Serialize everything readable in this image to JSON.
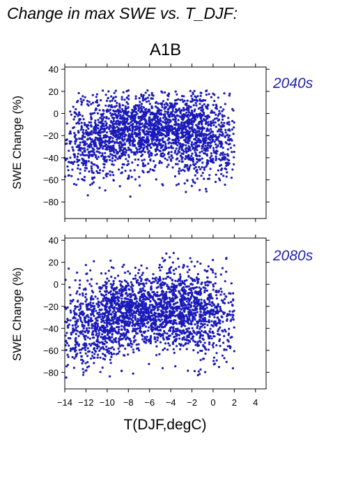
{
  "page_title": "Change in max SWE vs. T_DJF:",
  "scenario": "A1B",
  "colors": {
    "points": "#1a1ab8",
    "period_label": "#2222aa",
    "axis": "#000000"
  },
  "chart_data": [
    {
      "type": "scatter",
      "period": "2040s",
      "ylabel": "SWE Change (%)",
      "xlabel": "",
      "xlim": [
        -14,
        5
      ],
      "ylim": [
        -95,
        42
      ],
      "xticks": [
        -14,
        -12,
        -10,
        -8,
        -6,
        -4,
        -2,
        0,
        2,
        4
      ],
      "yticks": [
        40,
        20,
        0,
        -20,
        -40,
        -60,
        -80
      ],
      "xtick_labels": [],
      "ytick_labels": [
        "40",
        "20",
        "0",
        "−20",
        "−40",
        "−60",
        "−80"
      ],
      "grid": false,
      "point_count_estimate": 8000,
      "series": [
        {
          "values_summary": "dense cloud of points, T(DJF) mostly −13 to 1 degC, SWE change mostly −70 to +20 %",
          "cluster_centers": [
            {
              "x": -6,
              "y": -15
            },
            {
              "x": -3,
              "y": -5
            },
            {
              "x": -9,
              "y": -10
            },
            {
              "x": -11,
              "y": -30
            },
            {
              "x": -1,
              "y": -30
            }
          ],
          "x_min": -14,
          "x_max": 2,
          "y_min": -82,
          "y_max": 21
        }
      ]
    },
    {
      "type": "scatter",
      "period": "2080s",
      "ylabel": "SWE Change (%)",
      "xlabel": "T(DJF,degC)",
      "xlim": [
        -14,
        5
      ],
      "ylim": [
        -95,
        42
      ],
      "xticks": [
        -14,
        -12,
        -10,
        -8,
        -6,
        -4,
        -2,
        0,
        2,
        4
      ],
      "yticks": [
        40,
        20,
        0,
        -20,
        -40,
        -60,
        -80
      ],
      "xtick_labels": [
        "−14",
        "−12",
        "−10",
        "−8",
        "−6",
        "−4",
        "−2",
        "0",
        "2",
        "4"
      ],
      "ytick_labels": [
        "40",
        "20",
        "0",
        "−20",
        "−40",
        "−60",
        "−80"
      ],
      "grid": false,
      "point_count_estimate": 8000,
      "series": [
        {
          "values_summary": "dense cloud of points, T(DJF) mostly −14 to 2 degC, SWE change mostly −85 to +25 %",
          "cluster_centers": [
            {
              "x": -6,
              "y": -25
            },
            {
              "x": -3,
              "y": -15
            },
            {
              "x": -9,
              "y": -20
            },
            {
              "x": -11,
              "y": -45
            },
            {
              "x": -1,
              "y": -35
            }
          ],
          "x_min": -14,
          "x_max": 2,
          "y_min": -88,
          "y_max": 30
        }
      ]
    }
  ]
}
